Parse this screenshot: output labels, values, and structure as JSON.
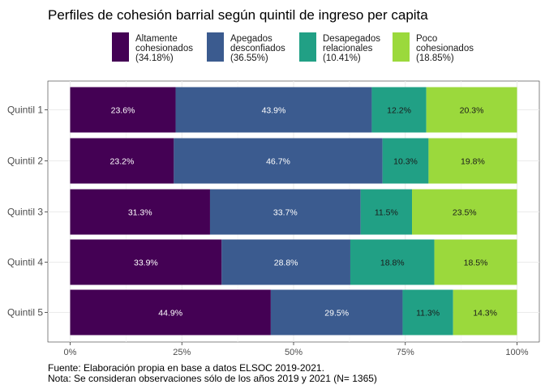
{
  "chart_data": {
    "type": "bar",
    "orientation": "horizontal",
    "stacked": true,
    "title": "Perfiles de cohesión barrial según quintil de ingreso per capita",
    "xlabel": "",
    "ylabel": "",
    "xlim": [
      0,
      100
    ],
    "x_ticks": [
      "0%",
      "25%",
      "50%",
      "75%",
      "100%"
    ],
    "grid": true,
    "legend_position": "top",
    "categories": [
      "Quintil 1",
      "Quintil 2",
      "Quintil 3",
      "Quintil 4",
      "Quintil 5"
    ],
    "series": [
      {
        "name": "Altamente cohesionados (34.18%)",
        "legend_lines": [
          "Altamente",
          "cohesionados",
          "(34.18%)"
        ],
        "color": "#440154",
        "label_color": "#ffffff",
        "values": [
          23.6,
          23.2,
          31.3,
          33.9,
          44.9
        ]
      },
      {
        "name": "Apegados desconfiados (36.55%)",
        "legend_lines": [
          "Apegados",
          "desconfiados",
          "(36.55%)"
        ],
        "color": "#3b5b8f",
        "label_color": "#ffffff",
        "values": [
          43.9,
          46.7,
          33.7,
          28.8,
          29.5
        ]
      },
      {
        "name": "Desapegados relacionales (10.41%)",
        "legend_lines": [
          "Desapegados",
          "relacionales",
          "(10.41%)"
        ],
        "color": "#21a085",
        "label_color": "#1a1a1a",
        "values": [
          12.2,
          10.3,
          11.5,
          18.8,
          11.3
        ]
      },
      {
        "name": "Poco cohesionados (18.85%)",
        "legend_lines": [
          "Poco",
          "cohesionados",
          "(18.85%)"
        ],
        "color": "#9bd93c",
        "label_color": "#1a1a1a",
        "values": [
          20.3,
          19.8,
          23.5,
          18.5,
          14.3
        ]
      }
    ],
    "data_labels": [
      [
        "23.6%",
        "43.9%",
        "12.2%",
        "20.3%"
      ],
      [
        "23.2%",
        "46.7%",
        "10.3%",
        "19.8%"
      ],
      [
        "31.3%",
        "33.7%",
        "11.5%",
        "23.5%"
      ],
      [
        "33.9%",
        "28.8%",
        "18.8%",
        "18.5%"
      ],
      [
        "44.9%",
        "29.5%",
        "11.3%",
        "14.3%"
      ]
    ],
    "caption_lines": [
      "Fuente: Elaboración propia en base a datos ELSOC 2019-2021.",
      "Nota: Se consideran observaciones sólo de los años 2019 y 2021 (N= 1365)"
    ]
  }
}
